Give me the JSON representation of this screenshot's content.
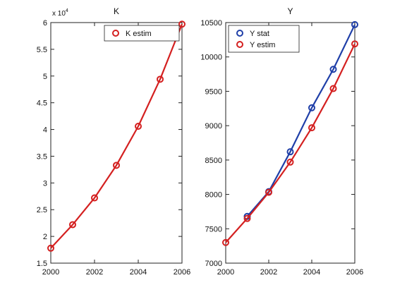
{
  "chart_data": [
    {
      "type": "line",
      "title": "K",
      "xlim": [
        2000,
        2006
      ],
      "ylim": [
        1.5,
        6
      ],
      "y_multiplier_label": "x 10",
      "y_multiplier_exponent": "4",
      "x_ticks": [
        2000,
        2002,
        2004,
        2006
      ],
      "y_ticks": [
        1.5,
        2,
        2.5,
        3,
        3.5,
        4,
        4.5,
        5,
        5.5,
        6
      ],
      "y_tick_labels": [
        "1.5",
        "2",
        "2.5",
        "3",
        "3.5",
        "4",
        "4.5",
        "5",
        "5.5",
        "6"
      ],
      "legend_position": "top-right",
      "series": [
        {
          "name": "K estim",
          "color": "#d42020",
          "x": [
            2000,
            2001,
            2002,
            2003,
            2004,
            2005,
            2006
          ],
          "y": [
            1.78,
            2.22,
            2.72,
            3.33,
            4.06,
            4.94,
            5.97
          ]
        }
      ]
    },
    {
      "type": "line",
      "title": "Y",
      "xlim": [
        2000,
        2006
      ],
      "ylim": [
        7000,
        10500
      ],
      "x_ticks": [
        2000,
        2002,
        2004,
        2006
      ],
      "y_ticks": [
        7000,
        7500,
        8000,
        8500,
        9000,
        9500,
        10000,
        10500
      ],
      "y_tick_labels": [
        "7000",
        "7500",
        "8000",
        "8500",
        "9000",
        "9500",
        "10000",
        "10500"
      ],
      "legend_position": "top-left",
      "series": [
        {
          "name": "Y stat",
          "color": "#1f3fa8",
          "x": [
            2001,
            2002,
            2003,
            2004,
            2005,
            2006
          ],
          "y": [
            7680,
            8040,
            8620,
            9260,
            9820,
            10470
          ]
        },
        {
          "name": "Y estim",
          "color": "#d42020",
          "x": [
            2000,
            2001,
            2002,
            2003,
            2004,
            2005,
            2006
          ],
          "y": [
            7300,
            7650,
            8030,
            8470,
            8970,
            9540,
            10190
          ]
        }
      ]
    }
  ]
}
